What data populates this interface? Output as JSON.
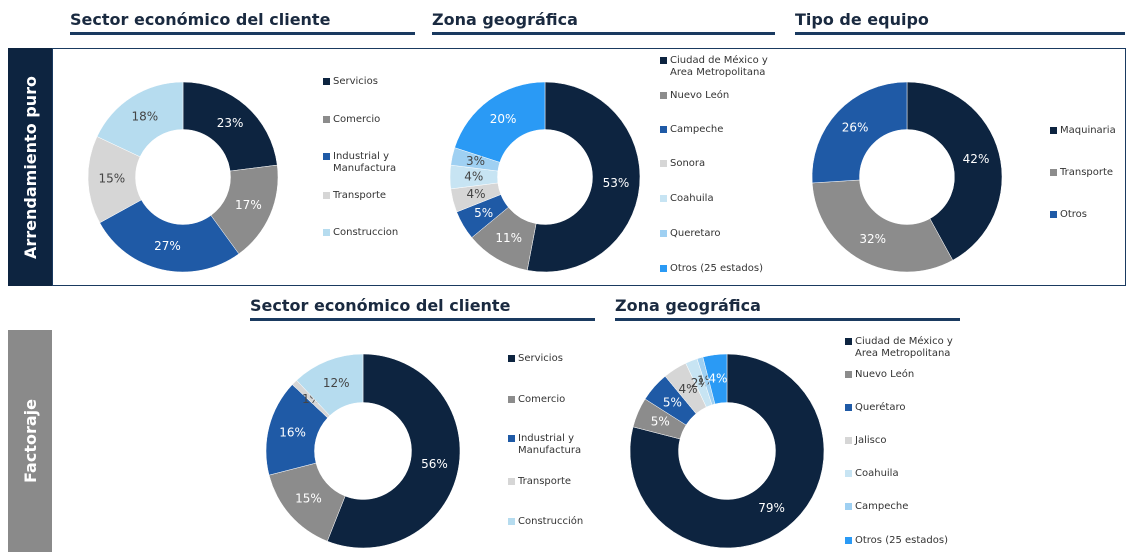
{
  "sections": [
    "Arrendamiento puro",
    "Factoraje"
  ],
  "chart_data": [
    {
      "type": "donut",
      "title": "Sector económico del cliente",
      "categories": [
        "Servicios",
        "Comercio",
        "Industrial y Manufactura",
        "Transporte",
        "Construccion"
      ],
      "values": [
        23,
        17,
        27,
        15,
        18
      ],
      "value_labels": [
        "23%",
        "17%",
        "27%",
        "15%",
        "18%"
      ],
      "colors": [
        "#0d2440",
        "#8c8c8c",
        "#1f5aa6",
        "#d6d6d6",
        "#b6dcef"
      ]
    },
    {
      "type": "donut",
      "title": "Zona geográfica",
      "categories": [
        "Ciudad de México y Area Metropolitana",
        "Nuevo León",
        "Campeche",
        "Sonora",
        "Coahuila",
        "Queretaro",
        "Otros (25 estados)"
      ],
      "values": [
        53,
        11,
        5,
        4,
        4,
        3,
        20
      ],
      "value_labels": [
        "53%",
        "11%",
        "5%",
        "4%",
        "4%",
        "3%",
        "20%"
      ],
      "colors": [
        "#0d2440",
        "#8c8c8c",
        "#1f5aa6",
        "#d6d6d6",
        "#c7e4f3",
        "#9fd0f2",
        "#2a9af5"
      ]
    },
    {
      "type": "donut",
      "title": "Tipo de equipo",
      "categories": [
        "Maquinaria",
        "Transporte",
        "Otros"
      ],
      "values": [
        42,
        32,
        26
      ],
      "value_labels": [
        "42%",
        "32%",
        "26%"
      ],
      "colors": [
        "#0d2440",
        "#8c8c8c",
        "#1f5aa6"
      ]
    },
    {
      "type": "donut",
      "title": "Sector económico del cliente",
      "categories": [
        "Servicios",
        "Comercio",
        "Industrial y Manufactura",
        "Transporte",
        "Construcción"
      ],
      "values": [
        56,
        15,
        16,
        1,
        12
      ],
      "value_labels": [
        "56%",
        "15%",
        "16%",
        "1%",
        "12%"
      ],
      "colors": [
        "#0d2440",
        "#8c8c8c",
        "#1f5aa6",
        "#d6d6d6",
        "#b6dcef"
      ]
    },
    {
      "type": "donut",
      "title": "Zona geográfica",
      "categories": [
        "Ciudad de México y Area Metropolitana",
        "Nuevo León",
        "Querétaro",
        "Jalisco",
        "Coahuila",
        "Campeche",
        "Otros (25 estados)"
      ],
      "values": [
        79,
        5,
        5,
        4,
        2,
        1,
        4
      ],
      "value_labels": [
        "79%",
        "5%",
        "5%",
        "4%",
        "2%",
        "1%",
        "4%"
      ],
      "colors": [
        "#0d2440",
        "#8c8c8c",
        "#1f5aa6",
        "#d6d6d6",
        "#c7e4f3",
        "#9fd0f2",
        "#2a9af5"
      ]
    }
  ]
}
